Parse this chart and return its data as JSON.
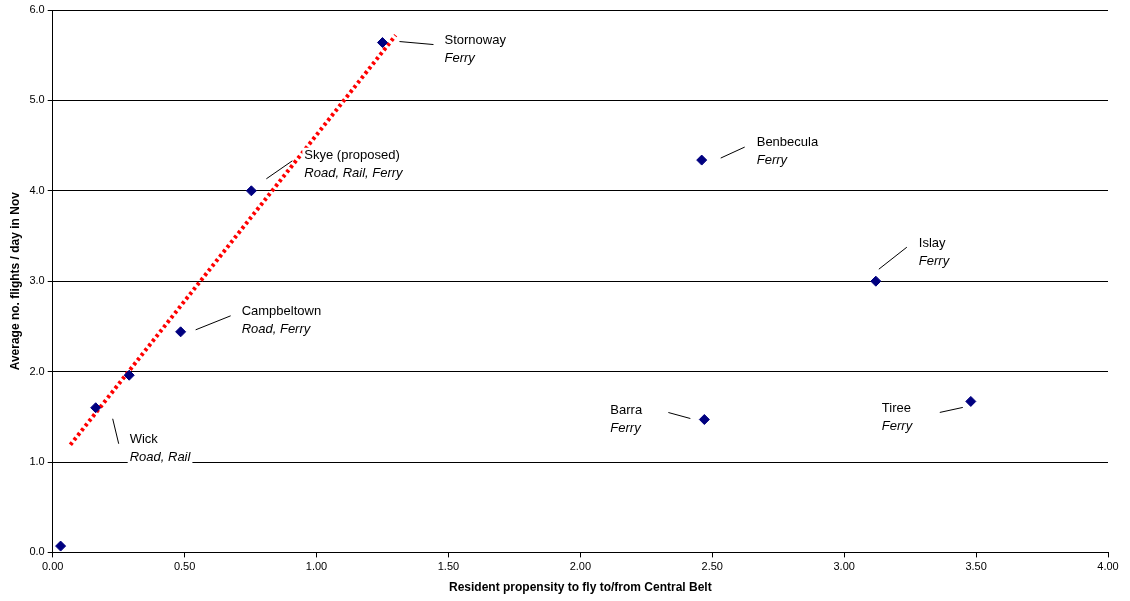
{
  "chart_data": {
    "type": "scatter",
    "xlabel": "Resident propensity to fly to/from Central Belt",
    "ylabel": "Average no. flights / day in Nov",
    "series": [
      {
        "color": "#000080",
        "x": [
          0.03,
          0.163,
          0.29,
          0.485,
          0.753,
          1.25,
          2.46,
          2.47,
          3.12,
          3.48
        ],
        "values": [
          0.07,
          1.6,
          1.96,
          2.44,
          4.0,
          5.64,
          4.34,
          1.47,
          3.0,
          1.67
        ],
        "marker": "diamond"
      },
      {
        "type": "line",
        "color": "#ff0000",
        "x": [
          0.067,
          1.3
        ],
        "values": [
          1.19,
          5.72
        ],
        "line_style": "dotted",
        "marker": "none"
      }
    ],
    "xlim": [
      0,
      4
    ],
    "ylim": [
      0,
      6
    ],
    "xticks": [
      {
        "value": 0,
        "label": "0.00"
      },
      {
        "value": 0.5,
        "label": "0.50"
      },
      {
        "value": 1,
        "label": "1.00"
      },
      {
        "value": 1.5,
        "label": "1.50"
      },
      {
        "value": 2,
        "label": "2.00"
      },
      {
        "value": 2.5,
        "label": "2.50"
      },
      {
        "value": 3,
        "label": "3.00"
      },
      {
        "value": 3.5,
        "label": "3.50"
      },
      {
        "value": 4,
        "label": "4.00"
      }
    ],
    "yticks": [
      {
        "value": 0,
        "label": "0.0"
      },
      {
        "value": 1,
        "label": "1.0"
      },
      {
        "value": 2,
        "label": "2.0"
      },
      {
        "value": 3,
        "label": "3.0"
      },
      {
        "value": 4,
        "label": "4.0"
      },
      {
        "value": 5,
        "label": "5.0"
      },
      {
        "value": 6,
        "label": "6.0"
      }
    ],
    "grid": "y",
    "legend": false,
    "annotations": [
      "Stornoway\nFerry",
      "Skye (proposed)\nRoad, Rail, Ferry",
      "Campbeltown\nRoad, Ferry",
      "Wick\nRoad, Rail",
      "Benbecula\nFerry",
      "Islay\nFerry",
      "Barra\nFerry",
      "Tiree\nFerry"
    ]
  }
}
